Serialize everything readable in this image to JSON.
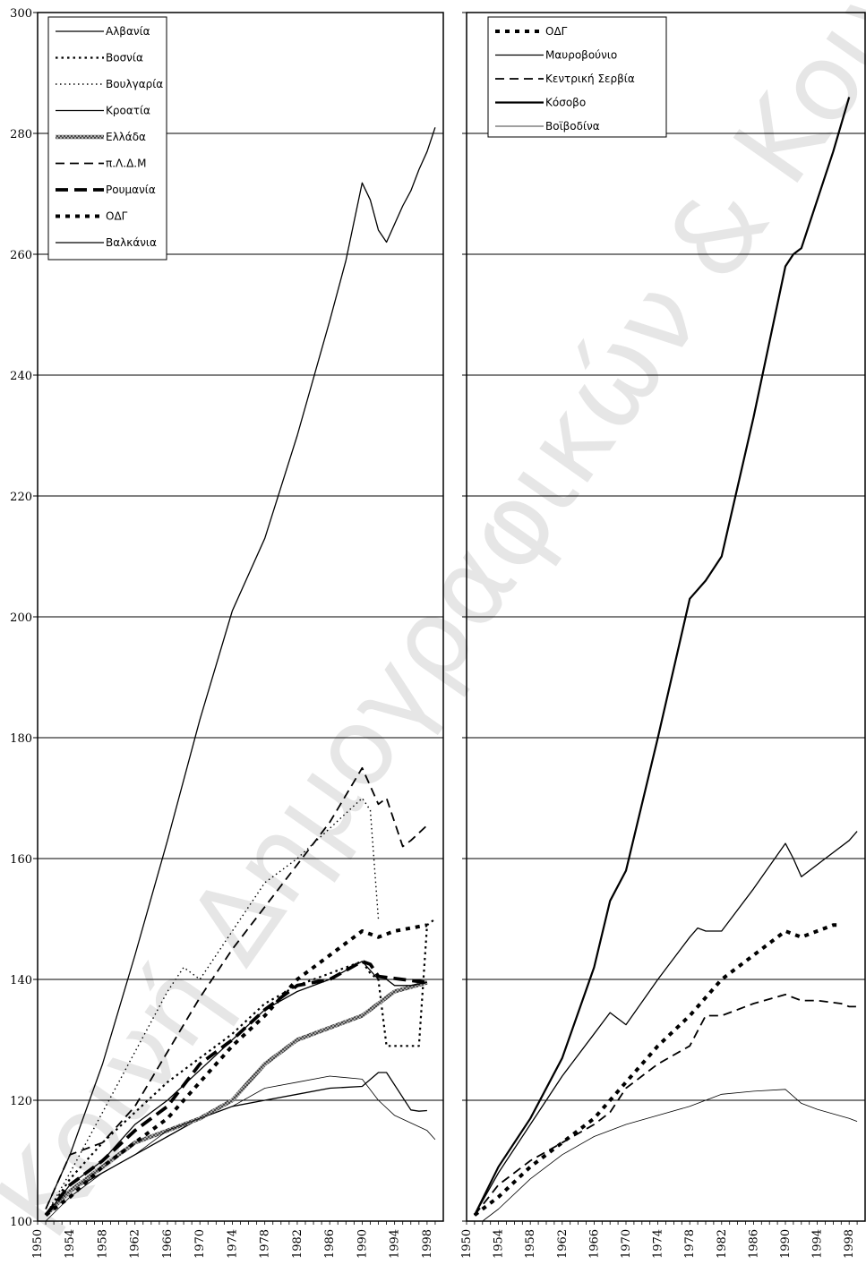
{
  "watermark": "Κοινή Δημογραφικών & Κοινωνικών Ανα",
  "chart_data": [
    {
      "type": "line",
      "ylim": [
        100,
        300
      ],
      "xlim": [
        1950,
        2000
      ],
      "yticks": [
        "100",
        "120",
        "140",
        "160",
        "180",
        "200",
        "220",
        "240",
        "260",
        "280",
        "300"
      ],
      "xticks": [
        "1950",
        "1954",
        "1958",
        "1962",
        "1966",
        "1970",
        "1974",
        "1978",
        "1982",
        "1986",
        "1990",
        "1994",
        "1998"
      ],
      "grid": true,
      "legend": "top-left",
      "series": [
        {
          "name": "Αλβανία",
          "style": "solid-thin",
          "color": "#000000",
          "x": [
            1951,
            1954,
            1958,
            1962,
            1966,
            1970,
            1974,
            1978,
            1982,
            1986,
            1988,
            1990,
            1991,
            1992,
            1993,
            1995,
            1996,
            1997,
            1998,
            1999
          ],
          "y": [
            102,
            111,
            126,
            144,
            163,
            183,
            201,
            213,
            230,
            249,
            259,
            271.8,
            269,
            264,
            262,
            268,
            270.5,
            274,
            277,
            281
          ]
        },
        {
          "name": "Βοσνία",
          "style": "dotted",
          "color": "#000000",
          "x": [
            1951,
            1954,
            1958,
            1962,
            1966,
            1970,
            1974,
            1978,
            1982,
            1986,
            1990,
            1991,
            1992,
            1993,
            1996,
            1997,
            1998,
            1999
          ],
          "y": [
            101,
            107,
            113,
            118,
            123,
            127,
            131,
            136,
            139,
            141,
            143,
            141,
            140,
            129,
            129,
            129,
            149,
            150
          ]
        },
        {
          "name": "Βουλγαρία",
          "style": "fine-dotted",
          "color": "#000000",
          "x": [
            1951,
            1954,
            1958,
            1962,
            1966,
            1968,
            1970,
            1974,
            1978,
            1982,
            1986,
            1990,
            1991,
            1992
          ],
          "y": [
            101,
            108,
            118,
            128,
            138,
            142,
            140,
            148,
            156,
            160,
            165,
            170,
            168,
            150
          ]
        },
        {
          "name": "Κροατία",
          "style": "solid-thin",
          "color": "#000000",
          "x": [
            1951,
            1954,
            1958,
            1962,
            1966,
            1970,
            1974,
            1978,
            1982,
            1986,
            1990,
            1992,
            1993,
            1996,
            1997,
            1998
          ],
          "y": [
            101,
            105,
            108,
            111,
            114,
            117,
            119,
            120,
            121,
            122,
            122.3,
            124.6,
            124.6,
            118.4,
            118.2,
            118.3
          ]
        },
        {
          "name": "Ελλάδα",
          "style": "thick-hatched",
          "color": "#888888",
          "x": [
            1951,
            1954,
            1958,
            1962,
            1966,
            1970,
            1974,
            1978,
            1982,
            1986,
            1990,
            1994,
            1998
          ],
          "y": [
            101,
            105,
            109,
            113,
            115,
            117,
            120,
            126,
            130,
            132,
            134,
            138,
            139.5
          ]
        },
        {
          "name": "π.Λ.Δ.Μ",
          "style": "dashed",
          "color": "#000000",
          "x": [
            1951,
            1954,
            1958,
            1962,
            1966,
            1970,
            1974,
            1978,
            1982,
            1986,
            1990,
            1991,
            1992,
            1993,
            1995,
            1996,
            1998
          ],
          "y": [
            102,
            111,
            113,
            119,
            128,
            137,
            145,
            152,
            159,
            166,
            175,
            172,
            169,
            170,
            162,
            163,
            165.5
          ]
        },
        {
          "name": "Ρουμανία",
          "style": "thick-dashed",
          "color": "#000000",
          "x": [
            1951,
            1954,
            1958,
            1962,
            1966,
            1970,
            1974,
            1978,
            1982,
            1986,
            1990,
            1991,
            1992,
            1998
          ],
          "y": [
            101,
            106,
            110,
            115,
            119,
            126,
            130,
            135,
            139,
            140,
            143,
            142.5,
            140.5,
            139.5
          ]
        },
        {
          "name": "ΟΔΓ",
          "style": "thick-dotted",
          "color": "#000000",
          "x": [
            1951,
            1954,
            1958,
            1962,
            1966,
            1970,
            1974,
            1978,
            1982,
            1986,
            1990,
            1992,
            1994,
            1998
          ],
          "y": [
            101,
            104,
            109,
            113,
            117,
            123,
            129,
            134,
            140,
            144,
            148,
            147,
            148,
            149
          ]
        },
        {
          "name": "Βαλκάνια",
          "style": "solid-thin",
          "color": "#000000",
          "x": [
            1951,
            1954,
            1958,
            1962,
            1966,
            1970,
            1974,
            1978,
            1982,
            1986,
            1990,
            1992,
            1993,
            1994,
            1996,
            1998
          ],
          "y": [
            101,
            106,
            110,
            116,
            120,
            125,
            130,
            135,
            138,
            140,
            143,
            140,
            140,
            139,
            139,
            139.5
          ]
        },
        {
          "name": "",
          "style": "solid-hairline",
          "color": "#000000",
          "x": [
            1951,
            1954,
            1958,
            1962,
            1966,
            1970,
            1974,
            1978,
            1982,
            1986,
            1990,
            1992,
            1994,
            1998,
            1999
          ],
          "y": [
            100,
            104,
            108,
            111,
            115,
            117,
            119,
            122,
            123,
            124,
            123.5,
            120,
            117.5,
            115,
            113.5
          ]
        }
      ]
    },
    {
      "type": "line",
      "ylim": [
        100,
        300
      ],
      "xlim": [
        1950,
        2000
      ],
      "yticks": [
        "100",
        "120",
        "140",
        "160",
        "180",
        "200",
        "220",
        "240",
        "260",
        "280",
        "300"
      ],
      "xticks": [
        "1950",
        "1954",
        "1958",
        "1962",
        "1966",
        "1970",
        "1974",
        "1978",
        "1982",
        "1986",
        "1990",
        "1994",
        "1998"
      ],
      "grid": true,
      "legend": "top-left",
      "series": [
        {
          "name": "ΟΔΓ",
          "style": "thick-dotted",
          "color": "#000000",
          "x": [
            1951,
            1954,
            1958,
            1962,
            1966,
            1970,
            1974,
            1978,
            1982,
            1986,
            1990,
            1992,
            1994,
            1996,
            1997
          ],
          "y": [
            101,
            104,
            109,
            113,
            117,
            123,
            129,
            134,
            140,
            144,
            148,
            147,
            148,
            149,
            149
          ]
        },
        {
          "name": "Μαυροβούνιο",
          "style": "solid-thin",
          "color": "#000000",
          "x": [
            1951,
            1954,
            1958,
            1962,
            1966,
            1968,
            1970,
            1974,
            1978,
            1979,
            1980,
            1982,
            1986,
            1990,
            1991,
            1992,
            1995,
            1998,
            1999
          ],
          "y": [
            101,
            108,
            116,
            124,
            131,
            134.5,
            132.5,
            140,
            147,
            148.5,
            148,
            148,
            155,
            162.5,
            160,
            157,
            160,
            163,
            164.5
          ]
        },
        {
          "name": "Κεντρική Σερβία",
          "style": "dashed",
          "color": "#000000",
          "x": [
            1951,
            1954,
            1958,
            1962,
            1966,
            1968,
            1970,
            1974,
            1978,
            1980,
            1982,
            1986,
            1990,
            1992,
            1994,
            1997,
            1998,
            1999
          ],
          "y": [
            101,
            106,
            110,
            113,
            116,
            118,
            122,
            126,
            129,
            134,
            134,
            136,
            137.5,
            136.5,
            136.5,
            136,
            135.5,
            135.5
          ]
        },
        {
          "name": "Κόσοβο",
          "style": "solid-thick",
          "color": "#000000",
          "x": [
            1951,
            1954,
            1958,
            1962,
            1966,
            1968,
            1970,
            1974,
            1978,
            1980,
            1982,
            1986,
            1990,
            1991,
            1992,
            1994,
            1996,
            1998
          ],
          "y": [
            101,
            109,
            117,
            127,
            142,
            153,
            158,
            180,
            203,
            206,
            210,
            233,
            258,
            260,
            261,
            269,
            277,
            286
          ]
        },
        {
          "name": "Βοϊβοδίνα",
          "style": "solid-hairline",
          "color": "#000000",
          "x": [
            1950,
            1952,
            1954,
            1958,
            1962,
            1966,
            1970,
            1974,
            1978,
            1982,
            1986,
            1990,
            1992,
            1994,
            1998,
            1999
          ],
          "y": [
            100,
            100,
            102,
            107,
            111,
            114,
            116,
            117.5,
            119,
            121,
            121.5,
            121.8,
            119.5,
            118.5,
            117,
            116.5
          ]
        }
      ]
    }
  ]
}
